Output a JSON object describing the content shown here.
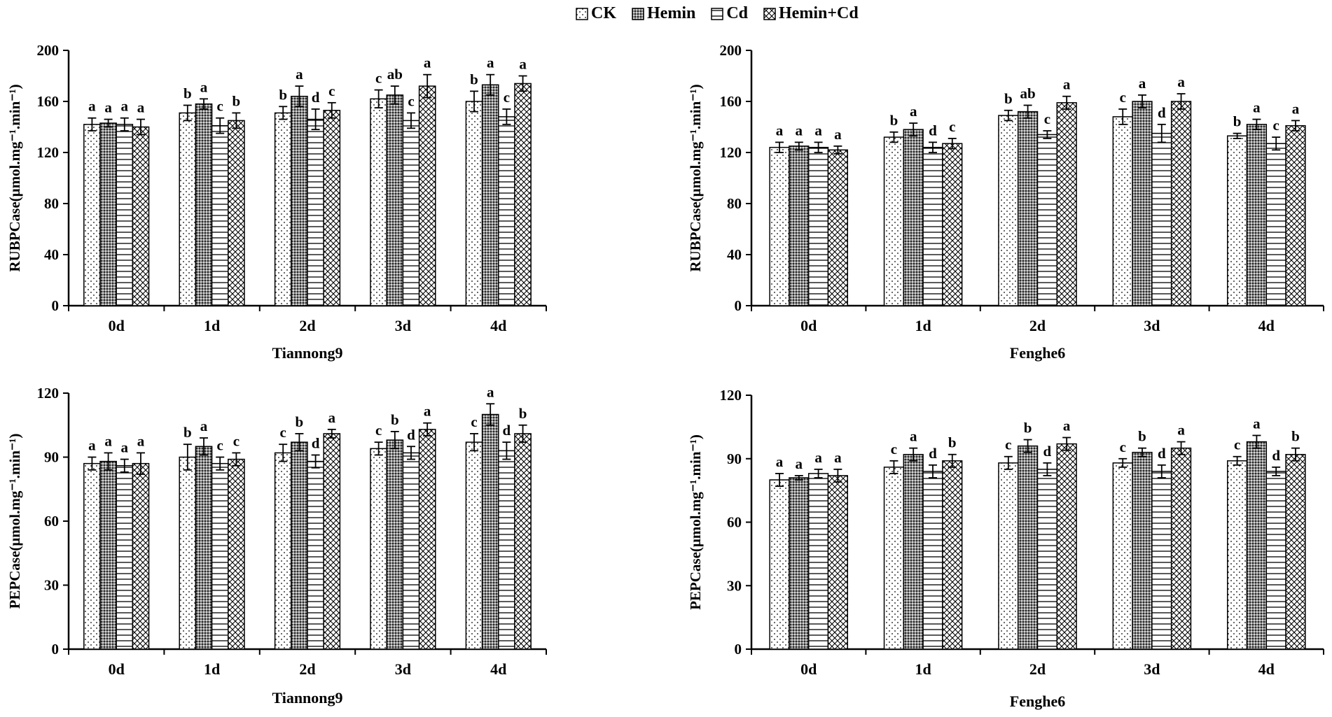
{
  "legend": {
    "items": [
      {
        "label": "CK",
        "pattern": "dots"
      },
      {
        "label": "Hemin",
        "pattern": "dense"
      },
      {
        "label": "Cd",
        "pattern": "hlines"
      },
      {
        "label": "Hemin+Cd",
        "pattern": "cross"
      }
    ]
  },
  "colors": {
    "ink": "#000000",
    "bar_fill": "#ffffff",
    "dense_fill": "#8a8a8a"
  },
  "chart_data": [
    {
      "type": "bar",
      "id": "rubp-tiannong9",
      "ylabel": "RUBPCase(μmol.mg⁻¹.min⁻¹)",
      "xlabel": "Tiannong9",
      "categories": [
        "0d",
        "1d",
        "2d",
        "3d",
        "4d"
      ],
      "ylim": [
        0,
        200
      ],
      "yticks": [
        0,
        40,
        80,
        120,
        160,
        200
      ],
      "series": [
        {
          "name": "CK",
          "values": [
            142,
            151,
            151,
            162,
            160
          ],
          "errors": [
            5,
            6,
            5,
            7,
            8
          ],
          "letters": [
            "a",
            "b",
            "b",
            "c",
            "b"
          ]
        },
        {
          "name": "Hemin",
          "values": [
            143,
            158,
            164,
            165,
            173
          ],
          "errors": [
            3,
            4,
            8,
            7,
            8
          ],
          "letters": [
            "a",
            "a",
            "a",
            "ab",
            "a"
          ]
        },
        {
          "name": "Cd",
          "values": [
            142,
            141,
            146,
            145,
            148
          ],
          "errors": [
            5,
            6,
            8,
            6,
            6
          ],
          "letters": [
            "a",
            "c",
            "d",
            "c",
            "c"
          ]
        },
        {
          "name": "Hemin+Cd",
          "values": [
            140,
            145,
            153,
            172,
            174
          ],
          "errors": [
            6,
            6,
            6,
            9,
            6
          ],
          "letters": [
            "a",
            "b",
            "c",
            "a",
            "a"
          ]
        }
      ]
    },
    {
      "type": "bar",
      "id": "rubp-fenghe6",
      "ylabel": "RUBPCase(μmol.mg⁻¹.min⁻¹)",
      "xlabel": "Fenghe6",
      "categories": [
        "0d",
        "1d",
        "2d",
        "3d",
        "4d"
      ],
      "ylim": [
        0,
        200
      ],
      "yticks": [
        0,
        40,
        80,
        120,
        160,
        200
      ],
      "series": [
        {
          "name": "CK",
          "values": [
            124,
            132,
            149,
            148,
            133
          ],
          "errors": [
            4,
            4,
            4,
            6,
            2
          ],
          "letters": [
            "a",
            "b",
            "b",
            "c",
            "b"
          ]
        },
        {
          "name": "Hemin",
          "values": [
            125,
            138,
            152,
            160,
            142
          ],
          "errors": [
            3,
            5,
            5,
            5,
            4
          ],
          "letters": [
            "a",
            "a",
            "ab",
            "a",
            "a"
          ]
        },
        {
          "name": "Cd",
          "values": [
            124,
            124,
            134,
            135,
            127
          ],
          "errors": [
            4,
            4,
            3,
            7,
            5
          ],
          "letters": [
            "a",
            "d",
            "c",
            "d",
            "c"
          ]
        },
        {
          "name": "Hemin+Cd",
          "values": [
            122,
            127,
            159,
            160,
            141
          ],
          "errors": [
            3,
            4,
            5,
            6,
            4
          ],
          "letters": [
            "a",
            "c",
            "a",
            "a",
            "a"
          ]
        }
      ]
    },
    {
      "type": "bar",
      "id": "pepc-tiannong9",
      "ylabel": "PEPCase(μmol.mg⁻¹.min⁻¹)",
      "xlabel": "Tiannong9",
      "categories": [
        "0d",
        "1d",
        "2d",
        "3d",
        "4d"
      ],
      "ylim": [
        0,
        120
      ],
      "yticks": [
        0,
        30,
        60,
        90,
        120
      ],
      "series": [
        {
          "name": "CK",
          "values": [
            87,
            90,
            92,
            94,
            97
          ],
          "errors": [
            3,
            6,
            4,
            3,
            4
          ],
          "letters": [
            "a",
            "b",
            "c",
            "c",
            "c"
          ]
        },
        {
          "name": "Hemin",
          "values": [
            88,
            95,
            97,
            98,
            110
          ],
          "errors": [
            4,
            4,
            4,
            4,
            5
          ],
          "letters": [
            "a",
            "a",
            "b",
            "b",
            "a"
          ]
        },
        {
          "name": "Cd",
          "values": [
            86,
            87,
            88,
            92,
            93
          ],
          "errors": [
            3,
            3,
            3,
            3,
            4
          ],
          "letters": [
            "a",
            "c",
            "d",
            "d",
            "d"
          ]
        },
        {
          "name": "Hemin+Cd",
          "values": [
            87,
            89,
            101,
            103,
            101
          ],
          "errors": [
            5,
            3,
            2,
            3,
            4
          ],
          "letters": [
            "a",
            "c",
            "a",
            "a",
            "b"
          ]
        }
      ]
    },
    {
      "type": "bar",
      "id": "pepc-fenghe6",
      "ylabel": "PEPCase(μmol.mg⁻¹.min⁻¹)",
      "xlabel": "Fenghe6",
      "categories": [
        "0d",
        "1d",
        "2d",
        "3d",
        "4d"
      ],
      "ylim": [
        0,
        120
      ],
      "yticks": [
        0,
        30,
        60,
        90,
        120
      ],
      "series": [
        {
          "name": "CK",
          "values": [
            80,
            86,
            88,
            88,
            89
          ],
          "errors": [
            3,
            3,
            3,
            2,
            2
          ],
          "letters": [
            "a",
            "c",
            "c",
            "c",
            "c"
          ]
        },
        {
          "name": "Hemin",
          "values": [
            81,
            92,
            96,
            93,
            98
          ],
          "errors": [
            1,
            3,
            3,
            2,
            3
          ],
          "letters": [
            "a",
            "a",
            "b",
            "b",
            "a"
          ]
        },
        {
          "name": "Cd",
          "values": [
            83,
            84,
            85,
            84,
            84
          ],
          "errors": [
            2,
            3,
            3,
            3,
            2
          ],
          "letters": [
            "a",
            "d",
            "d",
            "d",
            "d"
          ]
        },
        {
          "name": "Hemin+Cd",
          "values": [
            82,
            89,
            97,
            95,
            92
          ],
          "errors": [
            3,
            3,
            3,
            3,
            3
          ],
          "letters": [
            "a",
            "b",
            "a",
            "a",
            "b"
          ]
        }
      ]
    }
  ]
}
